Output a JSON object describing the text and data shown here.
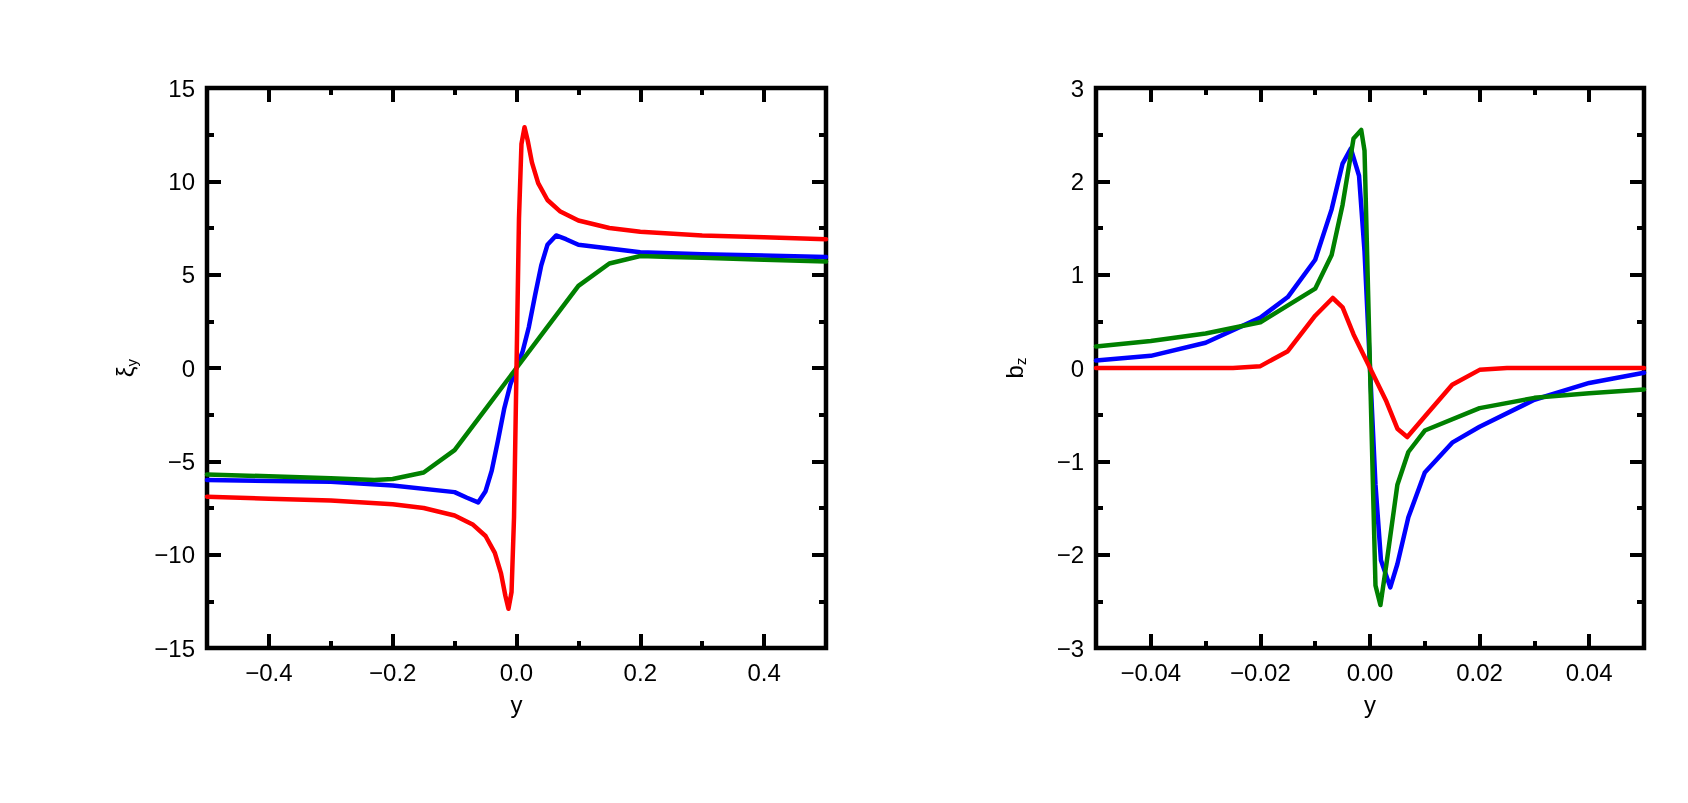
{
  "chart_data": [
    {
      "type": "line",
      "xlabel": "y",
      "ylabel": "ξ$_{y}$",
      "xlim": [
        -0.5,
        0.5
      ],
      "ylim": [
        -15,
        15
      ],
      "xticks": [
        {
          "value": -0.5,
          "label": null
        },
        -0.4,
        {
          "value": -0.3,
          "label": null
        },
        -0.2,
        {
          "value": -0.1,
          "label": null
        },
        {
          "value": 0,
          "label": "0.0"
        },
        {
          "value": 0.1,
          "label": null
        },
        0.2,
        {
          "value": 0.3,
          "label": null
        },
        0.4,
        {
          "value": 0.5,
          "label": null
        }
      ],
      "yticks": [
        -15,
        {
          "value": -12.5,
          "label": null
        },
        -10,
        {
          "value": -7.5,
          "label": null
        },
        -5,
        {
          "value": -2.5,
          "label": null
        },
        0,
        {
          "value": 2.5,
          "label": null
        },
        5,
        {
          "value": 7.5,
          "label": null
        },
        10,
        {
          "value": 12.5,
          "label": null
        },
        15
      ],
      "grid": false,
      "series": [
        {
          "color": "#0000ff",
          "x": [
            -0.5,
            -0.3,
            -0.2,
            -0.1,
            -0.08,
            -0.062,
            -0.05,
            -0.04,
            -0.03,
            -0.02,
            -0.01,
            0,
            0.01,
            0.02,
            0.03,
            0.04,
            0.05,
            0.064,
            0.08,
            0.1,
            0.2,
            0.3,
            0.5
          ],
          "values": [
            -6.0,
            -6.1,
            -6.3,
            -6.65,
            -6.95,
            -7.2,
            -6.6,
            -5.5,
            -3.9,
            -2.2,
            -0.9,
            0,
            0.9,
            2.2,
            3.9,
            5.5,
            6.6,
            7.1,
            6.9,
            6.6,
            6.2,
            6.1,
            5.95
          ]
        },
        {
          "color": "#008000",
          "x": [
            -0.5,
            -0.4,
            -0.3,
            -0.23,
            -0.2,
            -0.15,
            -0.1,
            -0.05,
            0,
            0.05,
            0.1,
            0.15,
            0.2,
            0.25,
            0.3,
            0.4,
            0.5
          ],
          "values": [
            -5.7,
            -5.8,
            -5.9,
            -6.0,
            -5.95,
            -5.6,
            -4.4,
            -2.2,
            0,
            2.2,
            4.4,
            5.6,
            6.0,
            5.95,
            5.9,
            5.8,
            5.7
          ]
        },
        {
          "color": "#ff0000",
          "x": [
            -0.5,
            -0.4,
            -0.3,
            -0.2,
            -0.15,
            -0.1,
            -0.07,
            -0.05,
            -0.035,
            -0.025,
            -0.018,
            -0.013,
            -0.008,
            -0.004,
            0,
            0.004,
            0.008,
            0.013,
            0.018,
            0.025,
            0.035,
            0.05,
            0.07,
            0.1,
            0.15,
            0.2,
            0.3,
            0.4,
            0.5
          ],
          "values": [
            -6.9,
            -7.0,
            -7.1,
            -7.3,
            -7.5,
            -7.9,
            -8.4,
            -9.0,
            -9.9,
            -11.0,
            -12.2,
            -12.9,
            -12.0,
            -8.0,
            0,
            8.0,
            12.0,
            12.9,
            12.2,
            11.0,
            9.9,
            9.0,
            8.4,
            7.9,
            7.5,
            7.3,
            7.1,
            7.0,
            6.9
          ]
        }
      ]
    },
    {
      "type": "line",
      "xlabel": "y",
      "ylabel": "b$_{z}$",
      "xlim": [
        -0.05,
        0.05
      ],
      "ylim": [
        -3,
        3
      ],
      "xticks": [
        {
          "value": -0.05,
          "label": null
        },
        {
          "value": -0.04,
          "label": "−0.04"
        },
        {
          "value": -0.03,
          "label": null
        },
        {
          "value": -0.02,
          "label": "−0.02"
        },
        {
          "value": -0.01,
          "label": null
        },
        {
          "value": 0,
          "label": "0.00"
        },
        {
          "value": 0.01,
          "label": null
        },
        {
          "value": 0.02,
          "label": "0.02"
        },
        {
          "value": 0.03,
          "label": null
        },
        {
          "value": 0.04,
          "label": "0.04"
        },
        {
          "value": 0.05,
          "label": null
        }
      ],
      "yticks": [
        -3,
        {
          "value": -2.5,
          "label": null
        },
        -2,
        {
          "value": -1.5,
          "label": null
        },
        -1,
        {
          "value": -0.5,
          "label": null
        },
        0,
        {
          "value": 0.5,
          "label": null
        },
        1,
        {
          "value": 1.5,
          "label": null
        },
        2,
        {
          "value": 2.5,
          "label": null
        },
        3
      ],
      "grid": false,
      "series": [
        {
          "color": "#0000ff",
          "x": [
            -0.05,
            -0.04,
            -0.03,
            -0.02,
            -0.015,
            -0.01,
            -0.007,
            -0.005,
            -0.0035,
            -0.002,
            -0.001,
            0,
            0.001,
            0.002,
            0.0037,
            0.005,
            0.007,
            0.01,
            0.015,
            0.02,
            0.03,
            0.04,
            0.05
          ],
          "values": [
            0.08,
            0.13,
            0.27,
            0.54,
            0.76,
            1.16,
            1.7,
            2.19,
            2.35,
            2.06,
            1.25,
            0,
            -1.25,
            -2.06,
            -2.35,
            -2.1,
            -1.6,
            -1.12,
            -0.8,
            -0.63,
            -0.34,
            -0.16,
            -0.05
          ]
        },
        {
          "color": "#008000",
          "x": [
            -0.05,
            -0.04,
            -0.03,
            -0.02,
            -0.01,
            -0.007,
            -0.005,
            -0.003,
            -0.0016,
            -0.001,
            0,
            0.001,
            0.0019,
            0.003,
            0.005,
            0.007,
            0.01,
            0.02,
            0.03,
            0.04,
            0.05
          ],
          "values": [
            0.23,
            0.29,
            0.37,
            0.49,
            0.85,
            1.21,
            1.75,
            2.46,
            2.55,
            2.33,
            0,
            -2.33,
            -2.54,
            -2.1,
            -1.25,
            -0.9,
            -0.67,
            -0.43,
            -0.32,
            -0.27,
            -0.23
          ]
        },
        {
          "color": "#ff0000",
          "x": [
            -0.05,
            -0.03,
            -0.025,
            -0.02,
            -0.015,
            -0.01,
            -0.0068,
            -0.005,
            -0.003,
            0,
            0.003,
            0.005,
            0.0068,
            0.01,
            0.015,
            0.02,
            0.025,
            0.03,
            0.05
          ],
          "values": [
            0,
            0,
            0,
            0.02,
            0.18,
            0.56,
            0.75,
            0.65,
            0.36,
            0,
            -0.36,
            -0.65,
            -0.74,
            -0.52,
            -0.18,
            -0.02,
            0,
            0,
            0
          ]
        }
      ]
    }
  ]
}
